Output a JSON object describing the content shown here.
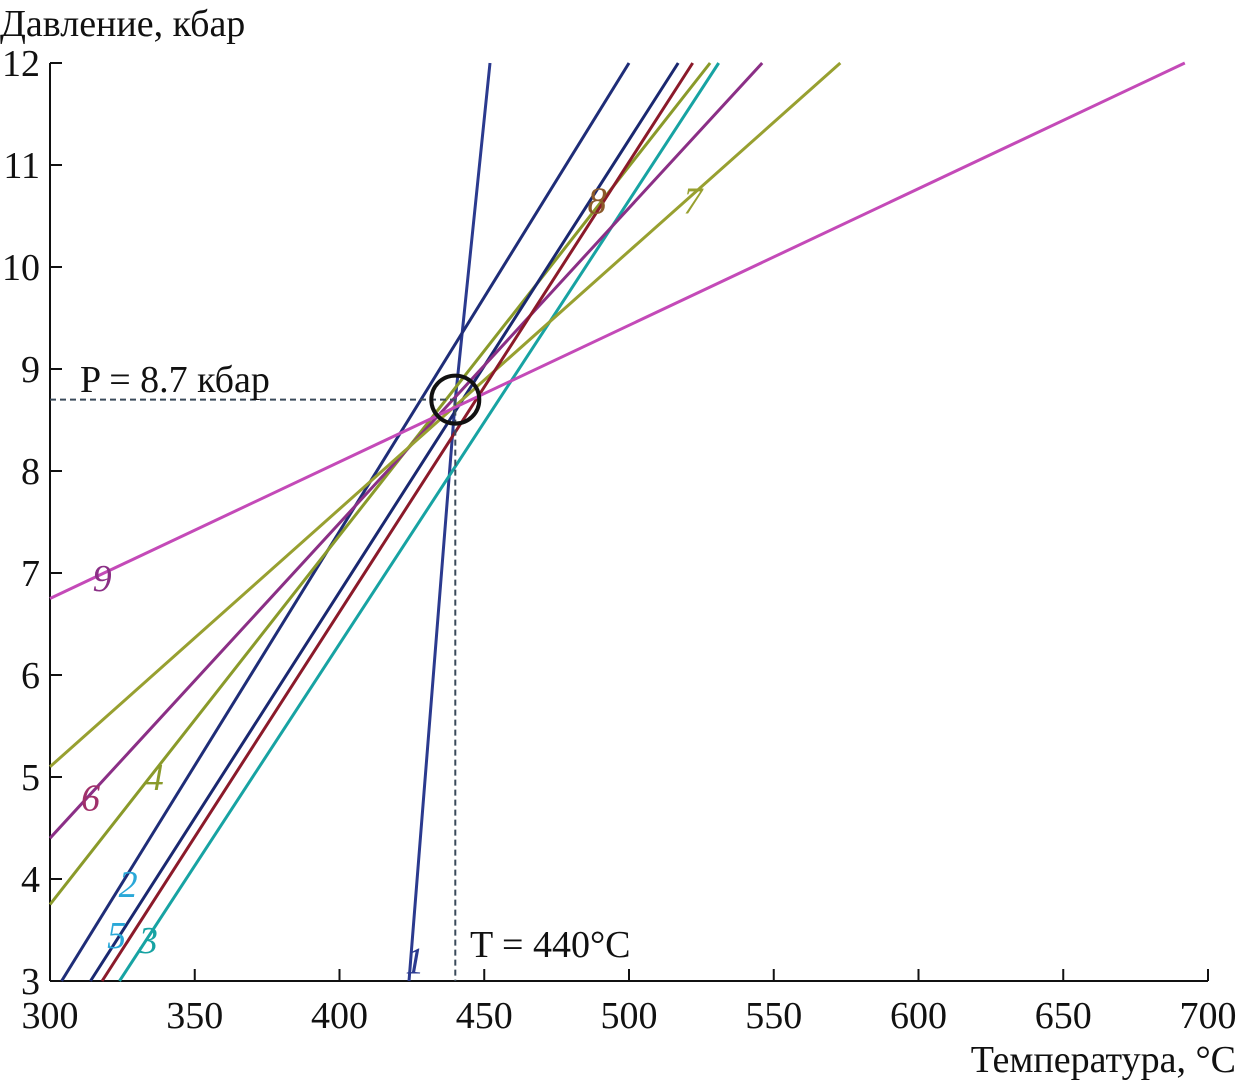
{
  "chart_data": {
    "type": "line",
    "title": "",
    "xlabel": "Температура, °C",
    "ylabel": "Давление, кбар",
    "xlim": [
      300,
      700
    ],
    "ylim": [
      3,
      12
    ],
    "x_ticks": [
      "300",
      "350",
      "400",
      "450",
      "500",
      "550",
      "600",
      "650",
      "700"
    ],
    "y_ticks": [
      "3",
      "4",
      "5",
      "6",
      "7",
      "8",
      "9",
      "10",
      "11",
      "12"
    ],
    "grid": false,
    "series": [
      {
        "name": "1",
        "color": "#2b3a8f",
        "points": [
          [
            424,
            3
          ],
          [
            440,
            8.7
          ],
          [
            452,
            12
          ]
        ]
      },
      {
        "name": "2",
        "color": "#1f2d78",
        "points": [
          [
            304,
            3
          ],
          [
            500,
            12
          ]
        ]
      },
      {
        "name": "3",
        "color": "#17a3a3",
        "points": [
          [
            324,
            3
          ],
          [
            531,
            12
          ]
        ]
      },
      {
        "name": "4",
        "color": "#8a9a2a",
        "points": [
          [
            300,
            3.75
          ],
          [
            528,
            12
          ]
        ]
      },
      {
        "name": "5",
        "color": "#1a2870",
        "points": [
          [
            314,
            3
          ],
          [
            517,
            12
          ]
        ]
      },
      {
        "name": "6",
        "color": "#8b2f86",
        "points": [
          [
            300,
            4.4
          ],
          [
            546,
            12
          ]
        ]
      },
      {
        "name": "7",
        "color": "#98a030",
        "points": [
          [
            300,
            5.1
          ],
          [
            573,
            12
          ]
        ]
      },
      {
        "name": "8",
        "color": "#8b1a2a",
        "points": [
          [
            318,
            3
          ],
          [
            522,
            12
          ]
        ]
      },
      {
        "name": "9",
        "color": "#c44ab8",
        "points": [
          [
            300,
            6.75
          ],
          [
            692,
            12
          ]
        ]
      }
    ],
    "series_labels": [
      {
        "text": "1",
        "x": 426,
        "y": 3.2,
        "color": "#2b3a8f"
      },
      {
        "text": "2",
        "x": 327,
        "y": 3.95,
        "color": "#2aa8d8"
      },
      {
        "text": "3",
        "x": 334,
        "y": 3.4,
        "color": "#17a3a3"
      },
      {
        "text": "4",
        "x": 336,
        "y": 5.0,
        "color": "#8a9a2a"
      },
      {
        "text": "5",
        "x": 323,
        "y": 3.45,
        "color": "#2aa8d8"
      },
      {
        "text": "6",
        "x": 314,
        "y": 4.8,
        "color": "#a0306a"
      },
      {
        "text": "7",
        "x": 522,
        "y": 10.65,
        "color": "#98a030"
      },
      {
        "text": "8",
        "x": 489,
        "y": 10.65,
        "color": "#8b5a2a"
      },
      {
        "text": "9",
        "x": 318,
        "y": 6.95,
        "color": "#8b2f86"
      }
    ],
    "intersection": {
      "x": 440,
      "y": 8.7
    },
    "annotations": {
      "pressure": "P = 8.7 кбар",
      "temperature": "T = 440°C"
    }
  }
}
